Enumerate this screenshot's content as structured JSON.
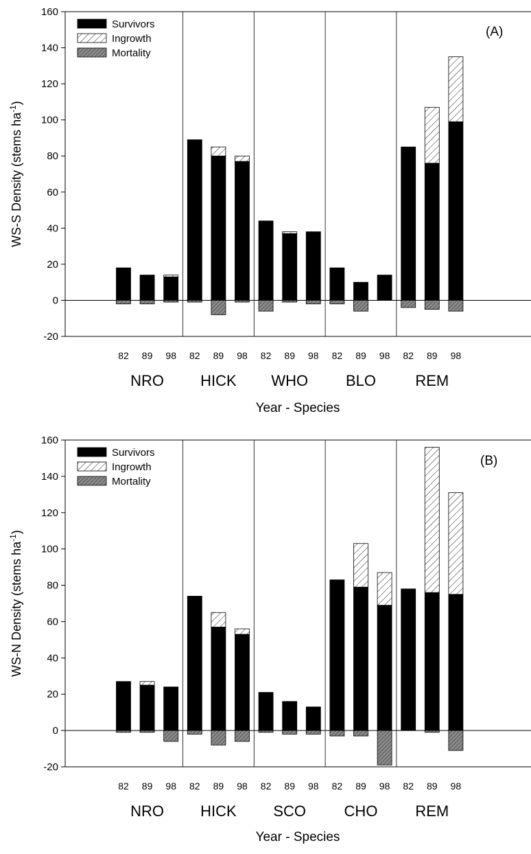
{
  "chart_data": [
    {
      "type": "bar",
      "stacked": true,
      "panel_label": "(A)",
      "ylabel": "WS-S Density (stems ha-1)",
      "ylabel_main": "WS-S Density (stems ha",
      "ylabel_sup": "-1",
      "ylabel_close": ")",
      "xlabel": "Year - Species",
      "ylim": [
        -20,
        160
      ],
      "yticks": [
        "160",
        "140",
        "120",
        "100",
        "80",
        "60",
        "40",
        "20",
        "0",
        "-20"
      ],
      "groups": [
        "NRO",
        "HICK",
        "WHO",
        "BLO",
        "REM"
      ],
      "years": [
        "82",
        "89",
        "98"
      ],
      "legend": {
        "placement": "top-left",
        "items": [
          "Survivors",
          "Ingrowth",
          "Mortality"
        ]
      },
      "series": [
        {
          "name": "Survivors",
          "values": [
            18,
            14,
            13,
            89,
            80,
            77,
            44,
            37,
            38,
            18,
            10,
            14,
            85,
            76,
            99
          ]
        },
        {
          "name": "Ingrowth",
          "values": [
            0,
            0,
            1,
            0,
            5,
            3,
            0,
            1,
            0,
            0,
            0,
            0,
            0,
            31,
            36
          ]
        },
        {
          "name": "Mortality",
          "values": [
            -2,
            -2,
            -1,
            -1,
            -8,
            -1,
            -6,
            -1,
            -2,
            -2,
            -6,
            0,
            -4,
            -5,
            -6
          ]
        }
      ]
    },
    {
      "type": "bar",
      "stacked": true,
      "panel_label": "(B)",
      "ylabel": "WS-N Density (stems ha-1)",
      "ylabel_main": "WS-N Density (stems ha",
      "ylabel_sup": "-1",
      "ylabel_close": ")",
      "xlabel": "Year - Species",
      "ylim": [
        -20,
        160
      ],
      "yticks": [
        "160",
        "140",
        "120",
        "100",
        "80",
        "60",
        "40",
        "20",
        "0",
        "-20"
      ],
      "groups": [
        "NRO",
        "HICK",
        "SCO",
        "CHO",
        "REM"
      ],
      "years": [
        "82",
        "89",
        "98"
      ],
      "legend": {
        "placement": "top-left",
        "items": [
          "Survivors",
          "Ingrowth",
          "Mortality"
        ]
      },
      "series": [
        {
          "name": "Survivors",
          "values": [
            27,
            25,
            24,
            74,
            57,
            53,
            21,
            16,
            13,
            83,
            79,
            69,
            78,
            76,
            75
          ]
        },
        {
          "name": "Ingrowth",
          "values": [
            0,
            2,
            0,
            0,
            8,
            3,
            0,
            0,
            0,
            0,
            24,
            18,
            0,
            80,
            56
          ]
        },
        {
          "name": "Mortality",
          "values": [
            -1,
            -1,
            -6,
            -2,
            -8,
            -6,
            -1,
            -2,
            -2,
            -3,
            -3,
            -19,
            0,
            -1,
            -11
          ]
        }
      ]
    }
  ]
}
